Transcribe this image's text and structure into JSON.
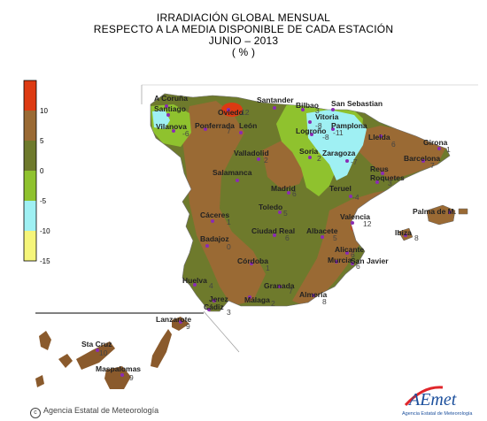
{
  "title": {
    "line1": "IRRADIACIÓN GLOBAL MENSUAL",
    "line2": "RESPECTO A LA MEDIA DISPONIBLE DE CADA ESTACIÓN",
    "line3": "JUNIO – 2013",
    "line4": "( % )"
  },
  "legend": {
    "ticks": [
      "10",
      "5",
      "0",
      "-5",
      "-10",
      "-15"
    ],
    "colors": [
      "#dd3a12",
      "#9a6a34",
      "#6e7a2c",
      "#8fc22e",
      "#9ff0f3",
      "#f5f57a"
    ]
  },
  "stations": [
    {
      "name": "A Coruña",
      "value": ""
    },
    {
      "name": "Santiago",
      "value": ""
    },
    {
      "name": "Vilanova",
      "value": "-6"
    },
    {
      "name": "Oviedo",
      "value": "12"
    },
    {
      "name": "Santander",
      "value": ""
    },
    {
      "name": "Bilbao",
      "value": "3"
    },
    {
      "name": "San Sebastian",
      "value": ""
    },
    {
      "name": "Vitoria",
      "value": "-8"
    },
    {
      "name": "Pamplona",
      "value": "-11"
    },
    {
      "name": "Logroño",
      "value": "-8"
    },
    {
      "name": "Ponferrada",
      "value": "7"
    },
    {
      "name": "León",
      "value": ""
    },
    {
      "name": "Girona",
      "value": "1"
    },
    {
      "name": "Lleida",
      "value": "6"
    },
    {
      "name": "Barcelona",
      "value": "7"
    },
    {
      "name": "Valladolid",
      "value": "2"
    },
    {
      "name": "Soria",
      "value": "2"
    },
    {
      "name": "Zaragoza",
      "value": "-7"
    },
    {
      "name": "Reus",
      "value": ""
    },
    {
      "name": "Roquetes",
      "value": "3"
    },
    {
      "name": "Salamanca",
      "value": ""
    },
    {
      "name": "Madrid",
      "value": "6"
    },
    {
      "name": "Teruel",
      "value": "-4"
    },
    {
      "name": "Toledo",
      "value": "5"
    },
    {
      "name": "Palma de M.",
      "value": ""
    },
    {
      "name": "Cáceres",
      "value": "1"
    },
    {
      "name": "Valencia",
      "value": "12"
    },
    {
      "name": "Badajoz",
      "value": "0"
    },
    {
      "name": "Ciudad Real",
      "value": "6"
    },
    {
      "name": "Albacete",
      "value": "5"
    },
    {
      "name": "Ibiza",
      "value": "8"
    },
    {
      "name": "Córdoba",
      "value": "1"
    },
    {
      "name": "Alicante",
      "value": "6"
    },
    {
      "name": "Murcia",
      "value": ""
    },
    {
      "name": "San Javier",
      "value": "6"
    },
    {
      "name": "Huelva",
      "value": "4"
    },
    {
      "name": "Granada",
      "value": "7"
    },
    {
      "name": "Jerez",
      "value": ""
    },
    {
      "name": "Almería",
      "value": "8"
    },
    {
      "name": "Cádiz",
      "value": "3"
    },
    {
      "name": "Málaga",
      "value": "2"
    },
    {
      "name": "Lanzarote",
      "value": "9"
    },
    {
      "name": "Sta Cruz",
      "value": "10"
    },
    {
      "name": "Maspalomas",
      "value": "9"
    }
  ],
  "credit": "Agencia Estatal de Meteorología",
  "logo": {
    "wordmark": "AEmet",
    "subtitle": "Agencia Estatal de Meteorología"
  }
}
